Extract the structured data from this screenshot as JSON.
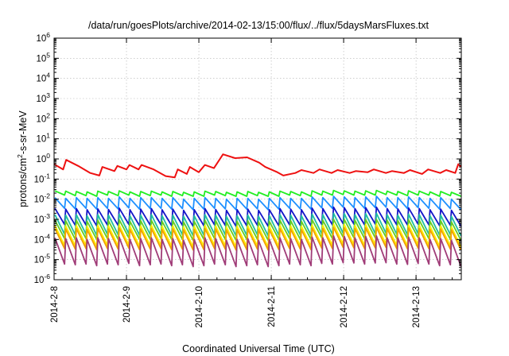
{
  "chart_data": {
    "type": "line",
    "title": "/data/run/goesPlots/archive/2014-02-13/15:00/flux/../flux/5daysMarsFluxes.txt",
    "xlabel": "Coordinated Universal Time (UTC)",
    "ylabel_main": "protons/cm",
    "ylabel_sup": "2",
    "ylabel_tail": "-s-sr-MeV",
    "y_scale": "log",
    "ylim": [
      1e-06,
      1000000.0
    ],
    "y_ticks": [
      {
        "value": 1e-06,
        "base": "10",
        "exp": "-6"
      },
      {
        "value": 1e-05,
        "base": "10",
        "exp": "-5"
      },
      {
        "value": 0.0001,
        "base": "10",
        "exp": "-4"
      },
      {
        "value": 0.001,
        "base": "10",
        "exp": "-3"
      },
      {
        "value": 0.01,
        "base": "10",
        "exp": "-2"
      },
      {
        "value": 0.1,
        "base": "10",
        "exp": "-1"
      },
      {
        "value": 1,
        "base": "10",
        "exp": "0"
      },
      {
        "value": 10,
        "base": "10",
        "exp": "1"
      },
      {
        "value": 100,
        "base": "10",
        "exp": "2"
      },
      {
        "value": 1000,
        "base": "10",
        "exp": "3"
      },
      {
        "value": 10000,
        "base": "10",
        "exp": "4"
      },
      {
        "value": 100000,
        "base": "10",
        "exp": "5"
      },
      {
        "value": 1000000,
        "base": "10",
        "exp": "6"
      }
    ],
    "xlim": [
      "2014-02-08T00:00",
      "2014-02-13T15:00"
    ],
    "x_ticks": [
      {
        "label": "2014-2-8",
        "date": "2014-02-08"
      },
      {
        "label": "2014-2-9",
        "date": "2014-02-09"
      },
      {
        "label": "2014-2-10",
        "date": "2014-02-10"
      },
      {
        "label": "2014-2-11",
        "date": "2014-02-11"
      },
      {
        "label": "2014-2-12",
        "date": "2014-02-12"
      },
      {
        "label": "2014-2-13",
        "date": "2014-02-13"
      }
    ],
    "grid": true,
    "legend": "none",
    "series": [
      {
        "color": "#ee1111",
        "x": [
          "2014-02-08T00:00",
          "2014-02-08T03:00",
          "2014-02-08T04:00",
          "2014-02-08T08:00",
          "2014-02-08T12:00",
          "2014-02-08T15:00",
          "2014-02-08T16:00",
          "2014-02-08T20:00",
          "2014-02-08T21:00",
          "2014-02-09T00:00",
          "2014-02-09T01:00",
          "2014-02-09T04:00",
          "2014-02-09T05:00",
          "2014-02-09T09:00",
          "2014-02-09T13:00",
          "2014-02-09T16:00",
          "2014-02-09T17:00",
          "2014-02-09T20:00",
          "2014-02-09T21:00",
          "2014-02-10T00:00",
          "2014-02-10T02:00",
          "2014-02-10T05:00",
          "2014-02-10T08:00",
          "2014-02-10T12:00",
          "2014-02-10T16:00",
          "2014-02-10T20:00",
          "2014-02-10T22:00",
          "2014-02-11T02:00",
          "2014-02-11T04:00",
          "2014-02-11T08:00",
          "2014-02-11T10:00",
          "2014-02-11T14:00",
          "2014-02-11T16:00",
          "2014-02-11T20:00",
          "2014-02-11T22:00",
          "2014-02-12T02:00",
          "2014-02-12T04:00",
          "2014-02-12T08:00",
          "2014-02-12T10:00",
          "2014-02-12T14:00",
          "2014-02-12T16:00",
          "2014-02-12T20:00",
          "2014-02-12T22:00",
          "2014-02-13T02:00",
          "2014-02-13T04:00",
          "2014-02-13T08:00",
          "2014-02-13T10:00",
          "2014-02-13T13:00",
          "2014-02-13T14:00",
          "2014-02-13T15:00"
        ],
        "y": [
          0.55,
          0.3,
          0.9,
          0.45,
          0.2,
          0.15,
          0.4,
          0.25,
          0.45,
          0.3,
          0.5,
          0.3,
          0.5,
          0.3,
          0.14,
          0.12,
          0.3,
          0.18,
          0.4,
          0.22,
          0.5,
          0.35,
          1.7,
          1.1,
          1.2,
          0.65,
          0.4,
          0.22,
          0.15,
          0.2,
          0.28,
          0.2,
          0.3,
          0.2,
          0.28,
          0.2,
          0.25,
          0.22,
          0.3,
          0.2,
          0.25,
          0.2,
          0.28,
          0.18,
          0.3,
          0.2,
          0.28,
          0.2,
          0.55,
          0.4
        ]
      },
      {
        "color": "#22ee22",
        "peaks": [
          0.026,
          0.025,
          0.024,
          0.023,
          0.025,
          0.024,
          0.026,
          0.023,
          0.024,
          0.025,
          0.023,
          0.024,
          0.022,
          0.023,
          0.025,
          0.024,
          0.022,
          0.023,
          0.024,
          0.022,
          0.023,
          0.025,
          0.024,
          0.023,
          0.026,
          0.025,
          0.027,
          0.026,
          0.025,
          0.026,
          0.027,
          0.025,
          0.024,
          0.026,
          0.025,
          0.023,
          0.024,
          0.022
        ],
        "troughs": [
          0.016,
          0.015,
          0.015,
          0.014,
          0.016,
          0.015,
          0.016,
          0.014,
          0.015,
          0.016,
          0.014,
          0.015,
          0.014,
          0.014,
          0.016,
          0.015,
          0.014,
          0.014,
          0.015,
          0.014,
          0.014,
          0.016,
          0.015,
          0.014,
          0.016,
          0.016,
          0.017,
          0.016,
          0.016,
          0.016,
          0.017,
          0.016,
          0.015,
          0.016,
          0.016,
          0.014,
          0.015,
          0.014
        ]
      },
      {
        "color": "#1e90ff",
        "peaks": [
          0.012,
          0.011,
          0.012,
          0.011,
          0.012,
          0.011,
          0.013,
          0.011,
          0.012,
          0.012,
          0.011,
          0.012,
          0.01,
          0.011,
          0.012,
          0.011,
          0.01,
          0.011,
          0.011,
          0.01,
          0.011,
          0.012,
          0.011,
          0.011,
          0.013,
          0.012,
          0.014,
          0.013,
          0.012,
          0.013,
          0.014,
          0.012,
          0.012,
          0.013,
          0.012,
          0.011,
          0.012,
          0.01
        ],
        "troughs": [
          0.0035,
          0.0033,
          0.0035,
          0.0032,
          0.0035,
          0.0033,
          0.0037,
          0.0032,
          0.0034,
          0.0035,
          0.0032,
          0.0034,
          0.003,
          0.0032,
          0.0035,
          0.0033,
          0.003,
          0.0032,
          0.0033,
          0.003,
          0.0032,
          0.0035,
          0.0033,
          0.0032,
          0.0037,
          0.0035,
          0.004,
          0.0038,
          0.0035,
          0.0038,
          0.004,
          0.0035,
          0.0034,
          0.0038,
          0.0035,
          0.0032,
          0.0034,
          0.003
        ]
      },
      {
        "color": "#1414c8",
        "peaks": [
          0.0035,
          0.0032,
          0.0034,
          0.003,
          0.0033,
          0.0031,
          0.0036,
          0.003,
          0.0032,
          0.0034,
          0.003,
          0.0032,
          0.0028,
          0.003,
          0.0034,
          0.0031,
          0.0028,
          0.003,
          0.0032,
          0.0028,
          0.003,
          0.0034,
          0.0032,
          0.003,
          0.0036,
          0.0034,
          0.004,
          0.0038,
          0.0034,
          0.0038,
          0.004,
          0.0034,
          0.0033,
          0.0037,
          0.0034,
          0.003,
          0.0032,
          0.0028
        ],
        "troughs": [
          0.00055,
          0.0005,
          0.00052,
          0.00048,
          0.00052,
          0.0005,
          0.00056,
          0.00048,
          0.0005,
          0.00053,
          0.00048,
          0.0005,
          0.00045,
          0.00048,
          0.00053,
          0.0005,
          0.00045,
          0.00048,
          0.0005,
          0.00045,
          0.00048,
          0.00053,
          0.0005,
          0.00048,
          0.00056,
          0.00053,
          0.0006,
          0.00058,
          0.00053,
          0.00058,
          0.0006,
          0.00053,
          0.00052,
          0.00057,
          0.00053,
          0.00048,
          0.0005,
          0.00045
        ]
      },
      {
        "color": "#20c0a0",
        "peaks": [
          0.0017,
          0.0016,
          0.0017,
          0.0015,
          0.0017,
          0.0016,
          0.0018,
          0.0015,
          0.0016,
          0.0017,
          0.0015,
          0.0016,
          0.0014,
          0.0015,
          0.0017,
          0.0016,
          0.0014,
          0.0015,
          0.0016,
          0.0014,
          0.0015,
          0.0017,
          0.0016,
          0.0015,
          0.0018,
          0.0017,
          0.002,
          0.0019,
          0.0017,
          0.0019,
          0.002,
          0.0017,
          0.0016,
          0.0018,
          0.0017,
          0.0015,
          0.0016,
          0.0014
        ],
        "troughs": [
          0.00018,
          0.00017,
          0.00018,
          0.00016,
          0.00018,
          0.00017,
          0.00019,
          0.00016,
          0.00017,
          0.00018,
          0.00016,
          0.00017,
          0.00015,
          0.00016,
          0.00018,
          0.00017,
          0.00015,
          0.00016,
          0.00017,
          0.00015,
          0.00016,
          0.00018,
          0.00017,
          0.00016,
          0.00019,
          0.00018,
          0.0002,
          0.00019,
          0.00018,
          0.00019,
          0.0002,
          0.00018,
          0.00017,
          0.00019,
          0.00018,
          0.00016,
          0.00017,
          0.00015
        ]
      },
      {
        "color": "#66cc22",
        "peaks": [
          0.0009,
          0.00085,
          0.0009,
          0.0008,
          0.0009,
          0.00085,
          0.00095,
          0.0008,
          0.00085,
          0.0009,
          0.0008,
          0.00085,
          0.00075,
          0.0008,
          0.0009,
          0.00085,
          0.00075,
          0.0008,
          0.00085,
          0.00075,
          0.0008,
          0.0009,
          0.00085,
          0.0008,
          0.00095,
          0.0009,
          0.001,
          0.00098,
          0.0009,
          0.00098,
          0.001,
          0.0009,
          0.00088,
          0.00096,
          0.0009,
          0.0008,
          0.00085,
          0.00075
        ],
        "troughs": [
          0.00011,
          0.0001,
          0.00011,
          0.0001,
          0.00011,
          0.0001,
          0.00012,
          0.0001,
          0.0001,
          0.00011,
          0.0001,
          0.0001,
          9e-05,
          0.0001,
          0.00011,
          0.0001,
          9e-05,
          0.0001,
          0.0001,
          9e-05,
          0.0001,
          0.00011,
          0.0001,
          0.0001,
          0.00012,
          0.00011,
          0.00013,
          0.00012,
          0.00011,
          0.00012,
          0.00013,
          0.00011,
          0.00011,
          0.00012,
          0.00011,
          0.0001,
          0.0001,
          9e-05
        ]
      },
      {
        "color": "#ffee00",
        "peaks": [
          0.0005,
          0.00047,
          0.0005,
          0.00045,
          0.0005,
          0.00047,
          0.00052,
          0.00045,
          0.00047,
          0.0005,
          0.00045,
          0.00047,
          0.00042,
          0.00045,
          0.0005,
          0.00047,
          0.00042,
          0.00045,
          0.00047,
          0.00042,
          0.00045,
          0.0005,
          0.00047,
          0.00045,
          0.00052,
          0.0005,
          0.00058,
          0.00055,
          0.0005,
          0.00055,
          0.00058,
          0.0005,
          0.00048,
          0.00053,
          0.0005,
          0.00045,
          0.00047,
          0.00042
        ],
        "troughs": [
          5e-05,
          4.7e-05,
          5e-05,
          4.5e-05,
          5e-05,
          4.7e-05,
          5.2e-05,
          4.5e-05,
          4.7e-05,
          5e-05,
          4.5e-05,
          4.7e-05,
          4.2e-05,
          4.5e-05,
          5e-05,
          4.7e-05,
          4.2e-05,
          4.5e-05,
          4.7e-05,
          4.2e-05,
          4.5e-05,
          5e-05,
          4.7e-05,
          4.5e-05,
          5.2e-05,
          5e-05,
          5.8e-05,
          5.5e-05,
          5e-05,
          5.5e-05,
          5.8e-05,
          5e-05,
          4.8e-05,
          5.3e-05,
          5e-05,
          4.5e-05,
          4.7e-05,
          4.2e-05
        ]
      },
      {
        "color": "#f2a000",
        "peaks": [
          0.00035,
          0.00033,
          0.00035,
          0.00031,
          0.00035,
          0.00033,
          0.00037,
          0.00031,
          0.00033,
          0.00035,
          0.00031,
          0.00033,
          0.0003,
          0.00031,
          0.00035,
          0.00033,
          0.0003,
          0.00031,
          0.00033,
          0.0003,
          0.00031,
          0.00035,
          0.00033,
          0.00031,
          0.00037,
          0.00035,
          0.0004,
          0.00038,
          0.00035,
          0.00038,
          0.0004,
          0.00035,
          0.00034,
          0.00037,
          0.00035,
          0.00031,
          0.00033,
          0.0003
        ],
        "troughs": [
          3.5e-05,
          3.3e-05,
          3.5e-05,
          3.1e-05,
          3.5e-05,
          3.3e-05,
          3.7e-05,
          3.1e-05,
          3.3e-05,
          3.5e-05,
          3.1e-05,
          3.3e-05,
          3e-05,
          3.1e-05,
          3.5e-05,
          3.3e-05,
          3e-05,
          3.1e-05,
          3.3e-05,
          3e-05,
          3.1e-05,
          3.5e-05,
          3.3e-05,
          3.1e-05,
          3.7e-05,
          3.5e-05,
          4e-05,
          3.8e-05,
          3.5e-05,
          3.8e-05,
          4e-05,
          3.5e-05,
          3.4e-05,
          3.7e-05,
          3.5e-05,
          3.1e-05,
          3.3e-05,
          3e-05
        ]
      },
      {
        "color": "#a03c78",
        "peaks": [
          0.00012,
          0.00011,
          0.00012,
          0.0001,
          0.00012,
          0.00011,
          0.00013,
          0.0001,
          0.00011,
          0.00012,
          0.0001,
          0.00011,
          9e-05,
          0.0001,
          0.00012,
          0.00011,
          9e-05,
          0.0001,
          0.00011,
          9e-05,
          0.0001,
          0.00012,
          0.00011,
          0.0001,
          0.00013,
          0.00012,
          0.00015,
          0.00014,
          0.00012,
          0.00014,
          0.00015,
          0.00012,
          0.00012,
          0.00013,
          0.00012,
          0.0001,
          0.00011,
          9e-05
        ],
        "troughs": [
          6e-06,
          5.5e-06,
          6e-06,
          5e-06,
          6e-06,
          5.5e-06,
          6.5e-06,
          5e-06,
          5.5e-06,
          6e-06,
          5e-06,
          5.5e-06,
          4.5e-06,
          5e-06,
          6e-06,
          5.5e-06,
          4.5e-06,
          5e-06,
          5.5e-06,
          4.5e-06,
          5e-06,
          6e-06,
          5.5e-06,
          5e-06,
          6.5e-06,
          6e-06,
          7e-06,
          6.8e-06,
          6e-06,
          6.8e-06,
          7e-06,
          6e-06,
          5.8e-06,
          6.4e-06,
          6e-06,
          5e-06,
          5.5e-06,
          4.5e-06
        ]
      }
    ]
  }
}
